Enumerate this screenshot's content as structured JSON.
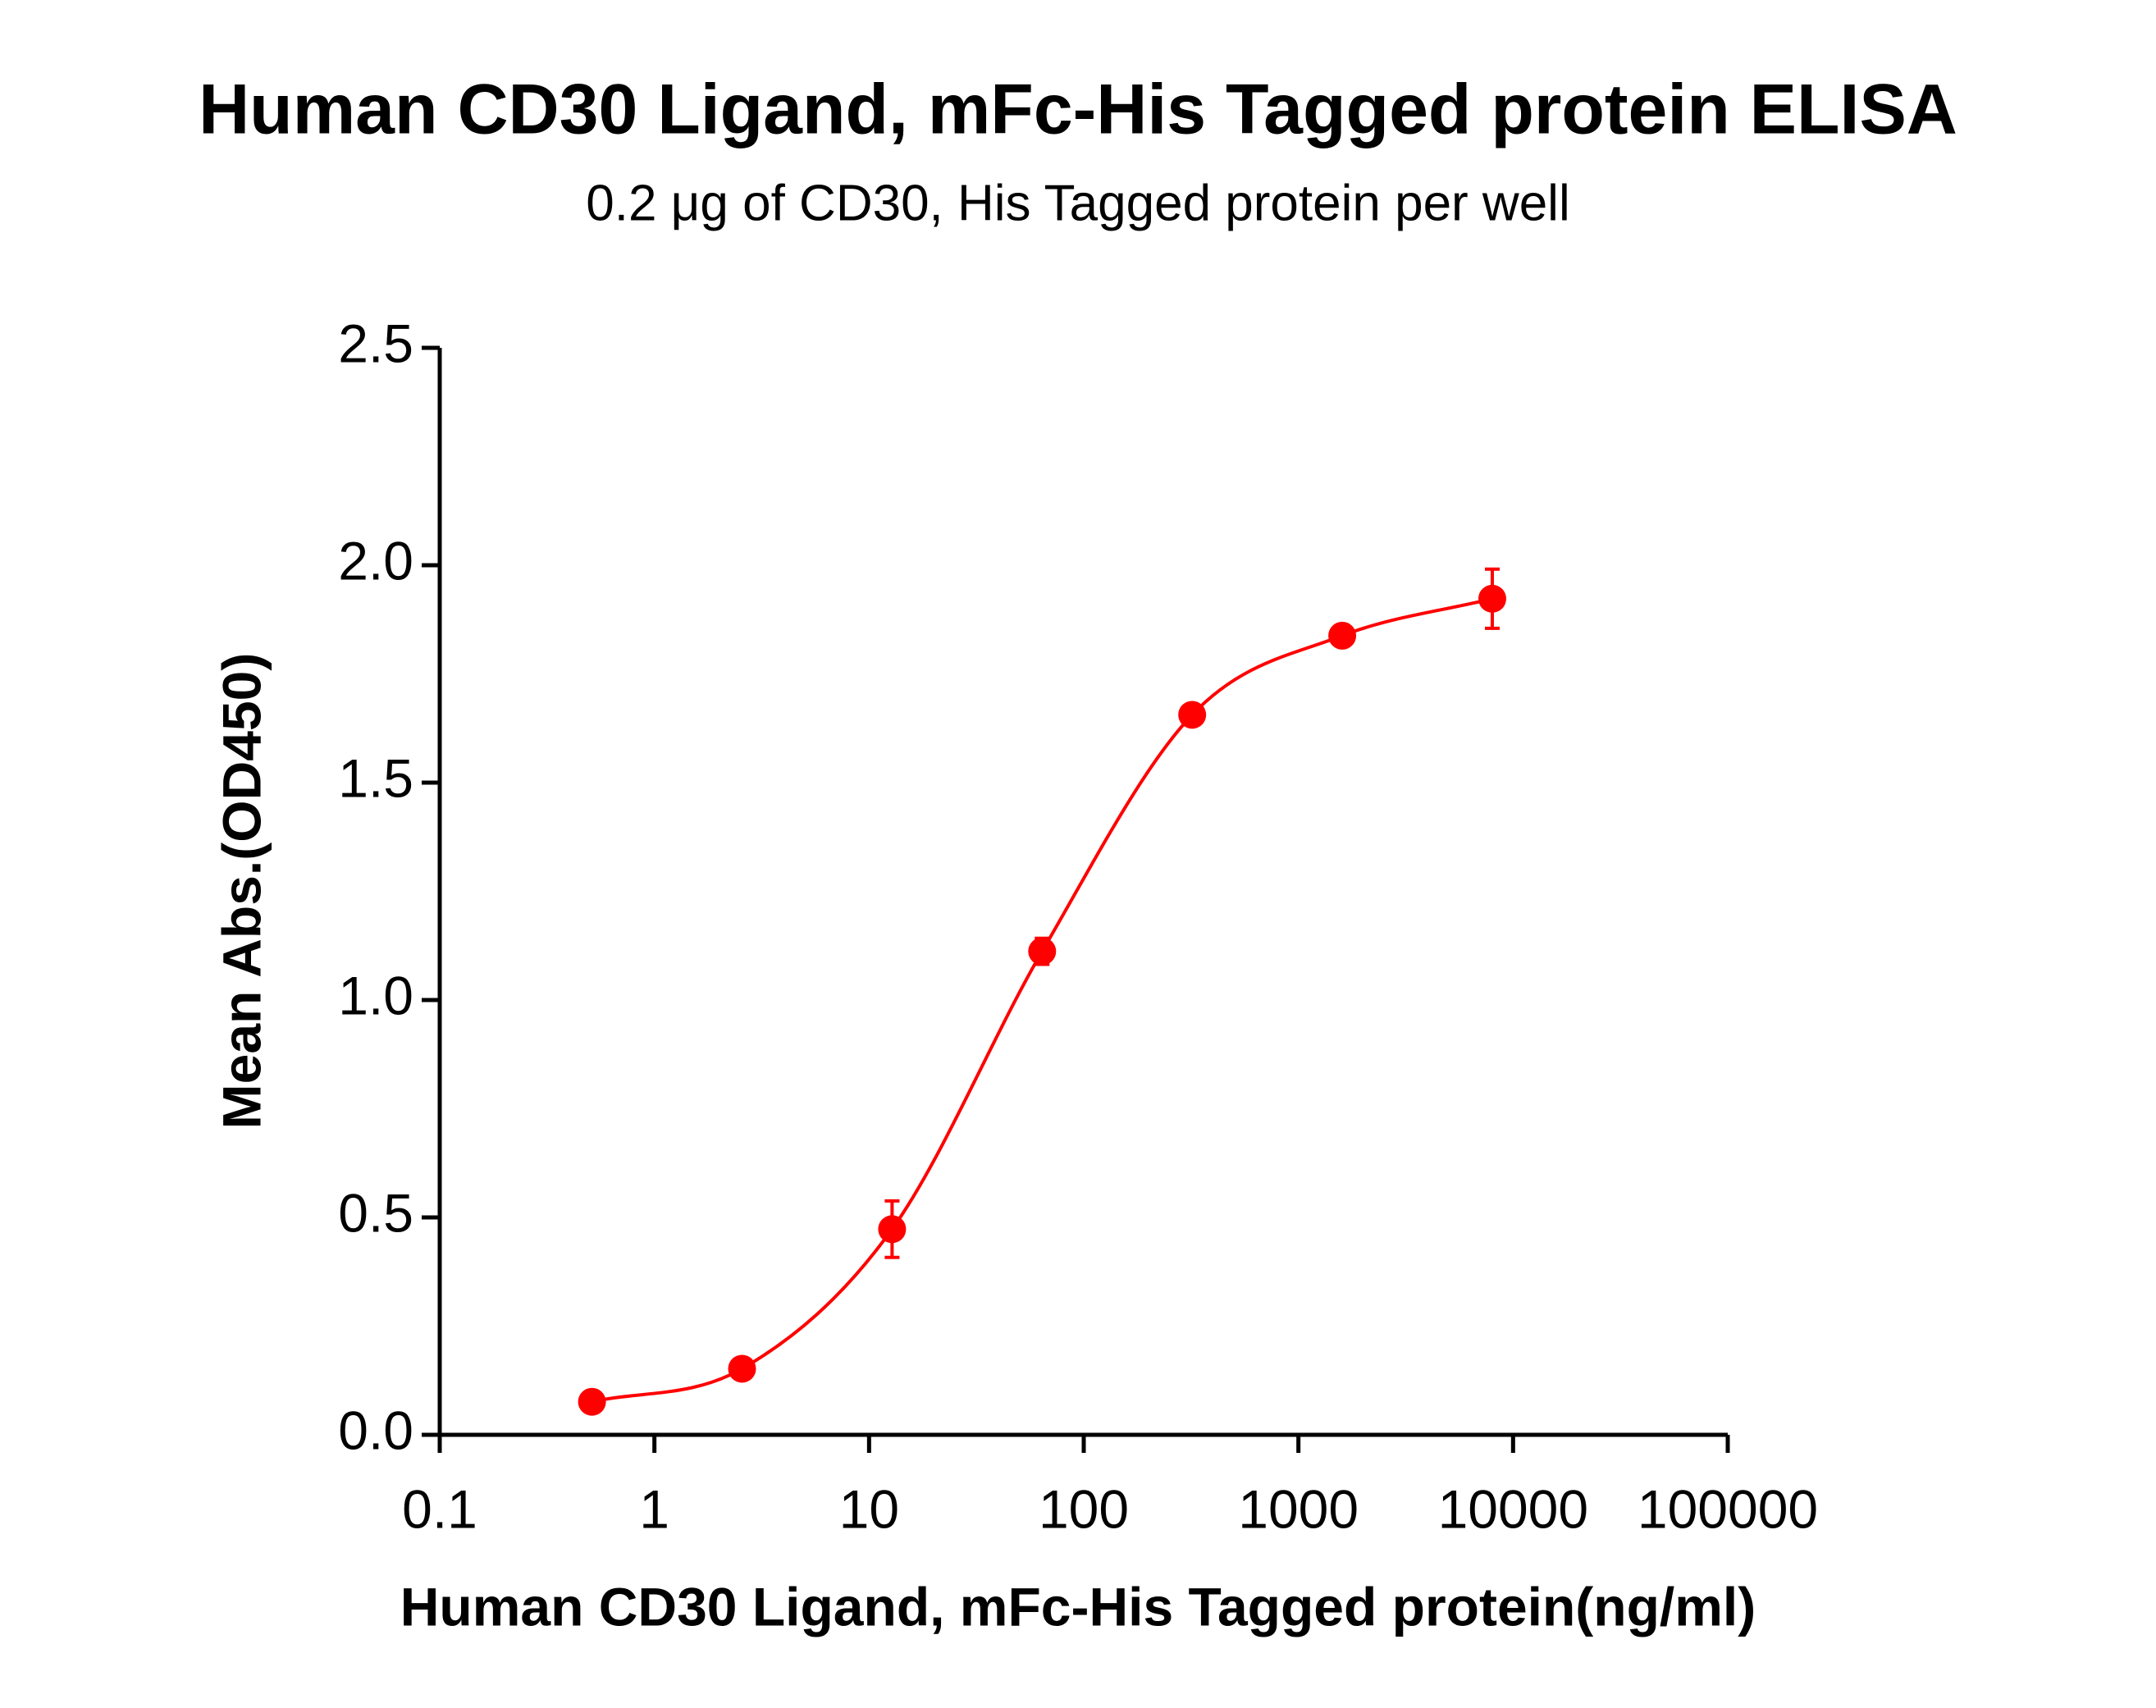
{
  "chart_data": {
    "type": "scatter",
    "title": "Human CD30 Ligand, mFc-His Tagged protein ELISA",
    "subtitle": "0.2 μg of CD30, His Tagged protein per well",
    "x_label": "Human CD30 Ligand, mFc-His Tagged protein(ng/ml)",
    "y_label": "Mean Abs.(OD450)",
    "x_scale": "log",
    "xlim": [
      0.1,
      100000
    ],
    "xticks": [
      0.1,
      1,
      10,
      100,
      1000,
      10000,
      100000
    ],
    "ylim": [
      0,
      2.5
    ],
    "yticks": [
      {
        "value": 0,
        "label": "0.0"
      },
      0.5,
      {
        "value": 1,
        "label": "1.0"
      },
      1.5,
      {
        "value": 2,
        "label": "2.0"
      },
      2.5
    ],
    "series": [
      {
        "color": "#ff0000",
        "x": [
          0.512,
          2.56,
          12.8,
          64,
          320,
          1600,
          8000
        ],
        "values": [
          0.076,
          0.152,
          0.473,
          1.112,
          1.656,
          1.838,
          1.923
        ],
        "errors": [
          0.01,
          0.01,
          0.065,
          0.03,
          0.012,
          0.012,
          0.068
        ]
      }
    ]
  }
}
